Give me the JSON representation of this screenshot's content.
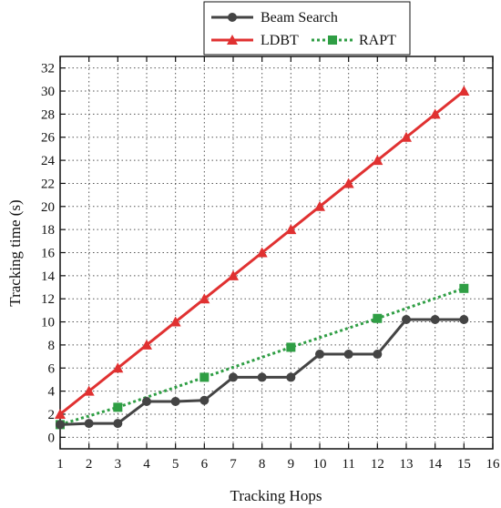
{
  "chart_data": {
    "type": "line",
    "xlabel": "Tracking Hops",
    "ylabel": "Tracking time (s)",
    "xlim": [
      1,
      16
    ],
    "ylim": [
      -1,
      33
    ],
    "xticks": [
      "1",
      "2",
      "3",
      "4",
      "5",
      "6",
      "7",
      "8",
      "9",
      "10",
      "11",
      "12",
      "13",
      "14",
      "15",
      "16"
    ],
    "yticks": [
      "0",
      "2",
      "4",
      "6",
      "8",
      "10",
      "12",
      "14",
      "16",
      "18",
      "20",
      "22",
      "24",
      "26",
      "28",
      "30",
      "32"
    ],
    "grid": true,
    "legend_position": "top",
    "series": [
      {
        "name": "Beam Search",
        "color": "#444444",
        "marker": "circle",
        "line_style": "solid",
        "x": [
          1,
          2,
          3,
          4,
          5,
          6,
          7,
          8,
          9,
          10,
          11,
          12,
          13,
          14,
          15
        ],
        "y": [
          1.1,
          1.2,
          1.2,
          3.1,
          3.1,
          3.2,
          5.2,
          5.2,
          5.2,
          7.2,
          7.2,
          7.2,
          10.2,
          10.2,
          10.2
        ]
      },
      {
        "name": "LDBT",
        "color": "#e03131",
        "marker": "triangle",
        "line_style": "solid",
        "x": [
          1,
          2,
          3,
          4,
          5,
          6,
          7,
          8,
          9,
          10,
          11,
          12,
          13,
          14,
          15
        ],
        "y": [
          2,
          4,
          6,
          8,
          10,
          12,
          14,
          16,
          18,
          20,
          22,
          24,
          26,
          28,
          30
        ]
      },
      {
        "name": "RAPT",
        "color": "#2f9e44",
        "marker": "square",
        "line_style": "dotted",
        "x": [
          1,
          3,
          6,
          9,
          12,
          15
        ],
        "y": [
          1.1,
          2.6,
          5.2,
          7.8,
          10.3,
          12.9
        ]
      }
    ]
  }
}
